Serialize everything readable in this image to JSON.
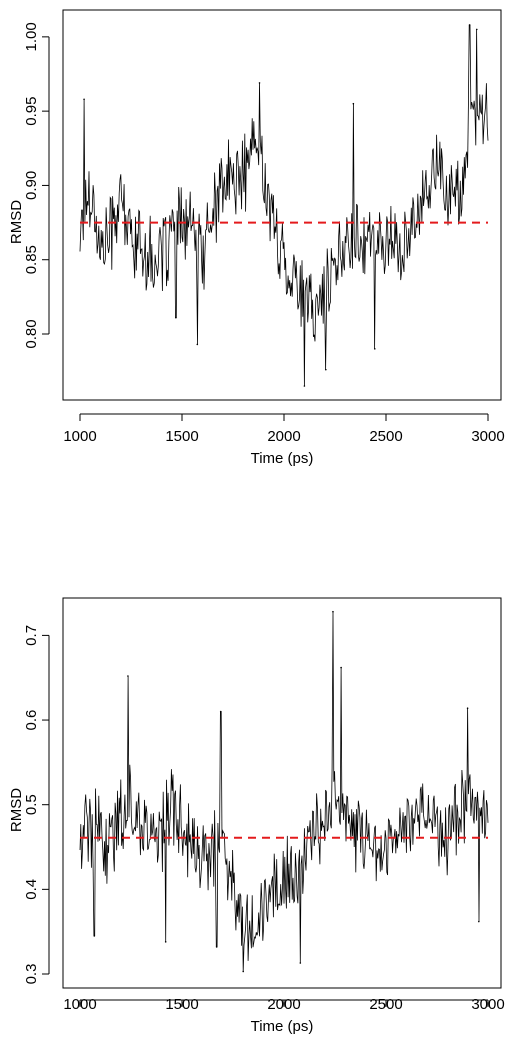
{
  "colors": {
    "series": "#000000",
    "mean_line": "#e41a1c",
    "axis": "#000000"
  },
  "chart_data": [
    {
      "type": "line",
      "title": "",
      "xlabel": "Time (ps)",
      "ylabel": "RMSD",
      "xlim": [
        1000,
        3000
      ],
      "ylim": [
        0.765,
        1.01
      ],
      "xticks": [
        1000,
        1500,
        2000,
        2500,
        3000
      ],
      "xtick_labels": [
        "1000",
        "1500",
        "2000",
        "2500",
        "3000"
      ],
      "yticks": [
        0.8,
        0.85,
        0.9,
        0.95,
        1.0
      ],
      "ytick_labels": [
        "0.80",
        "0.85",
        "0.90",
        "0.95",
        "1.00"
      ],
      "grid": false,
      "legend": "none",
      "mean": 0.875,
      "x": [
        1000,
        1050,
        1100,
        1150,
        1200,
        1250,
        1300,
        1350,
        1400,
        1450,
        1500,
        1550,
        1600,
        1650,
        1700,
        1750,
        1800,
        1850,
        1900,
        1950,
        2000,
        2050,
        2100,
        2150,
        2200,
        2250,
        2300,
        2350,
        2400,
        2450,
        2500,
        2550,
        2600,
        2650,
        2700,
        2750,
        2800,
        2850,
        2900,
        2950,
        3000
      ],
      "series": [
        {
          "values": [
            0.87,
            0.9,
            0.855,
            0.87,
            0.89,
            0.865,
            0.86,
            0.85,
            0.85,
            0.87,
            0.875,
            0.87,
            0.855,
            0.88,
            0.9,
            0.905,
            0.905,
            0.93,
            0.91,
            0.87,
            0.85,
            0.84,
            0.82,
            0.815,
            0.83,
            0.84,
            0.86,
            0.87,
            0.865,
            0.86,
            0.865,
            0.86,
            0.855,
            0.88,
            0.905,
            0.915,
            0.895,
            0.89,
            0.925,
            0.95,
            0.945
          ]
        }
      ],
      "markers": [
        {
          "x": 1020,
          "y": 0.958
        },
        {
          "x": 1470,
          "y": 0.811
        },
        {
          "x": 1575,
          "y": 0.793
        },
        {
          "x": 1880,
          "y": 0.969
        },
        {
          "x": 2100,
          "y": 0.765
        },
        {
          "x": 2205,
          "y": 0.776
        },
        {
          "x": 2340,
          "y": 0.955
        },
        {
          "x": 2445,
          "y": 0.79
        },
        {
          "x": 2910,
          "y": 1.008
        },
        {
          "x": 2945,
          "y": 1.005
        }
      ]
    },
    {
      "type": "line",
      "title": "",
      "xlabel": "Time (ps)",
      "ylabel": "RMSD",
      "xlim": [
        1000,
        3000
      ],
      "ylim": [
        0.3,
        0.73
      ],
      "xticks": [
        1000,
        1500,
        2000,
        2500,
        3000
      ],
      "xtick_labels": [
        "1000",
        "1500",
        "2000",
        "2500",
        "3000"
      ],
      "yticks": [
        0.3,
        0.4,
        0.5,
        0.6,
        0.7
      ],
      "ytick_labels": [
        "0.3",
        "0.4",
        "0.5",
        "0.6",
        "0.7"
      ],
      "grid": false,
      "legend": "none",
      "mean": 0.461,
      "x": [
        1000,
        1050,
        1100,
        1150,
        1200,
        1250,
        1300,
        1350,
        1400,
        1450,
        1500,
        1550,
        1600,
        1650,
        1700,
        1750,
        1800,
        1850,
        1900,
        1950,
        2000,
        2050,
        2100,
        2150,
        2200,
        2250,
        2300,
        2350,
        2400,
        2450,
        2500,
        2550,
        2600,
        2650,
        2700,
        2750,
        2800,
        2850,
        2900,
        2950,
        3000
      ],
      "series": [
        {
          "values": [
            0.47,
            0.48,
            0.46,
            0.45,
            0.49,
            0.5,
            0.48,
            0.46,
            0.47,
            0.5,
            0.48,
            0.45,
            0.43,
            0.44,
            0.46,
            0.4,
            0.37,
            0.36,
            0.38,
            0.4,
            0.42,
            0.41,
            0.43,
            0.47,
            0.49,
            0.51,
            0.48,
            0.47,
            0.46,
            0.45,
            0.44,
            0.47,
            0.48,
            0.49,
            0.5,
            0.47,
            0.46,
            0.49,
            0.51,
            0.5,
            0.48
          ]
        }
      ],
      "markers": [
        {
          "x": 1070,
          "y": 0.345
        },
        {
          "x": 1235,
          "y": 0.652
        },
        {
          "x": 1420,
          "y": 0.338
        },
        {
          "x": 1670,
          "y": 0.332
        },
        {
          "x": 1690,
          "y": 0.61
        },
        {
          "x": 1800,
          "y": 0.303
        },
        {
          "x": 2080,
          "y": 0.313
        },
        {
          "x": 2240,
          "y": 0.728
        },
        {
          "x": 2280,
          "y": 0.662
        },
        {
          "x": 2900,
          "y": 0.614
        },
        {
          "x": 2955,
          "y": 0.362
        }
      ]
    }
  ]
}
